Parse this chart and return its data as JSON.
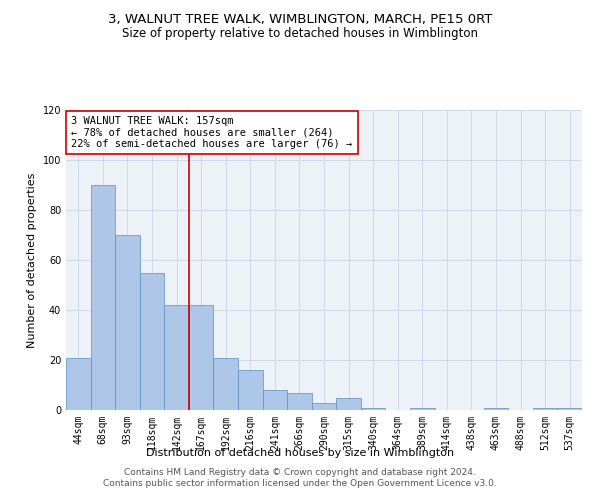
{
  "title": "3, WALNUT TREE WALK, WIMBLINGTON, MARCH, PE15 0RT",
  "subtitle": "Size of property relative to detached houses in Wimblington",
  "xlabel": "Distribution of detached houses by size in Wimblington",
  "ylabel": "Number of detached properties",
  "categories": [
    "44sqm",
    "68sqm",
    "93sqm",
    "118sqm",
    "142sqm",
    "167sqm",
    "192sqm",
    "216sqm",
    "241sqm",
    "266sqm",
    "290sqm",
    "315sqm",
    "340sqm",
    "364sqm",
    "389sqm",
    "414sqm",
    "438sqm",
    "463sqm",
    "488sqm",
    "512sqm",
    "537sqm"
  ],
  "values": [
    21,
    90,
    70,
    55,
    42,
    42,
    21,
    16,
    8,
    7,
    3,
    5,
    1,
    0,
    1,
    0,
    0,
    1,
    0,
    1,
    1
  ],
  "bar_color": "#aec6e8",
  "bar_edgecolor": "#5a8fc2",
  "vline_x_index": 5,
  "vline_color": "#cc0000",
  "annotation_text": "3 WALNUT TREE WALK: 157sqm\n← 78% of detached houses are smaller (264)\n22% of semi-detached houses are larger (76) →",
  "annotation_box_edgecolor": "#cc0000",
  "annotation_box_facecolor": "#ffffff",
  "ylim": [
    0,
    120
  ],
  "yticks": [
    0,
    20,
    40,
    60,
    80,
    100,
    120
  ],
  "grid_color": "#d0d8e8",
  "background_color": "#edf2f9",
  "footer_text": "Contains HM Land Registry data © Crown copyright and database right 2024.\nContains public sector information licensed under the Open Government Licence v3.0.",
  "title_fontsize": 9.5,
  "subtitle_fontsize": 8.5,
  "xlabel_fontsize": 8,
  "ylabel_fontsize": 8,
  "tick_fontsize": 7,
  "annotation_fontsize": 7.5,
  "footer_fontsize": 6.5
}
